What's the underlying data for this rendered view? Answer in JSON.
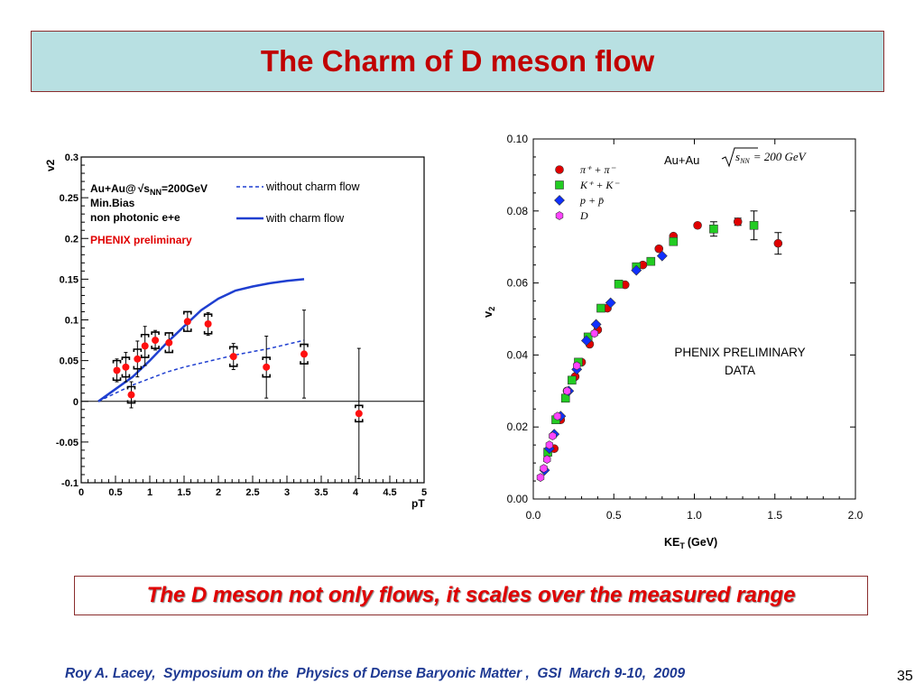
{
  "slide": {
    "title": "The Charm of D meson flow",
    "caption": "The D meson not only flows, it scales over the measured range",
    "footer": "Roy A. Lacey,  Symposium on the  Physics of Dense Baryonic Matter ,  GSI  March 9-10,  2009",
    "page_number": "35"
  },
  "colors": {
    "title_bg": "#b8e0e2",
    "title_text": "#c00000",
    "caption_text": "#e00000",
    "footer_text": "#1f3a93",
    "line_blue": "#1f3fd0"
  },
  "chart_data": [
    {
      "type": "scatter",
      "xlabel": "pT",
      "ylabel": "v2",
      "xlim": [
        0,
        5
      ],
      "ylim": [
        -0.1,
        0.3
      ],
      "xticks": [
        "0",
        "0.5",
        "1",
        "1.5",
        "2",
        "2.5",
        "3",
        "3.5",
        "4",
        "4.5",
        "5"
      ],
      "yticks": [
        "-0.1",
        "-0.05",
        "0",
        "0.05",
        "0.1",
        "0.15",
        "0.2",
        "0.25",
        "0.3"
      ],
      "annotations": {
        "line1": "Au+Au@",
        "line1_b": "s",
        "line1_sub": "NN",
        "line1_c": "=200GeV",
        "line2": "Min.Bias",
        "line3a": "non photonic e",
        "line3b": "+e",
        "line4": "PHENIX preliminary"
      },
      "legend_placement": "top-right",
      "series": [
        {
          "name": "without charm flow",
          "style": "dashed",
          "x": [
            0.25,
            0.5,
            0.75,
            1.0,
            1.25,
            1.5,
            1.75,
            2.0,
            2.25,
            2.5,
            2.75,
            3.0,
            3.25
          ],
          "y": [
            0.0,
            0.01,
            0.02,
            0.028,
            0.036,
            0.042,
            0.047,
            0.052,
            0.057,
            0.061,
            0.065,
            0.07,
            0.075
          ]
        },
        {
          "name": "with charm flow",
          "style": "solid",
          "x": [
            0.25,
            0.5,
            0.75,
            1.0,
            1.25,
            1.5,
            1.75,
            2.0,
            2.25,
            2.5,
            2.75,
            3.0,
            3.25
          ],
          "y": [
            0.0,
            0.015,
            0.03,
            0.05,
            0.072,
            0.092,
            0.112,
            0.126,
            0.136,
            0.141,
            0.145,
            0.148,
            0.15
          ]
        },
        {
          "name": "data",
          "x": [
            0.52,
            0.65,
            0.73,
            0.82,
            0.93,
            1.08,
            1.28,
            1.55,
            1.85,
            2.22,
            2.7,
            3.25,
            4.05
          ],
          "y": [
            0.038,
            0.042,
            0.008,
            0.052,
            0.068,
            0.075,
            0.072,
            0.098,
            0.095,
            0.055,
            0.042,
            0.058,
            -0.015
          ],
          "err": [
            0.014,
            0.018,
            0.016,
            0.022,
            0.024,
            0.012,
            0.012,
            0.012,
            0.014,
            0.016,
            0.038,
            0.054,
            0.08
          ],
          "sys": [
            0.012,
            0.012,
            0.01,
            0.012,
            0.014,
            0.01,
            0.012,
            0.012,
            0.012,
            0.012,
            0.012,
            0.012,
            0.01
          ]
        }
      ]
    },
    {
      "type": "scatter",
      "xlabel": "KE",
      "xlabel_sub": "T",
      "xlabel_unit": "(GeV)",
      "ylabel": "v",
      "ylabel_sub": "2",
      "xlim": [
        0,
        2
      ],
      "ylim": [
        0,
        0.1
      ],
      "xticks": [
        "0.0",
        "0.5",
        "1.0",
        "1.5",
        "2.0"
      ],
      "yticks": [
        "0.00",
        "0.02",
        "0.04",
        "0.06",
        "0.08",
        "0.10"
      ],
      "annotation_system": "Au+Au",
      "annotation_energy_s": "s",
      "annotation_energy_sub": "NN",
      "annotation_energy_val": "= 200 GeV",
      "annotation_prelim_1": "PHENIX PRELIMINARY",
      "annotation_prelim_2": "DATA",
      "legend_placement": "top-left",
      "legend": [
        {
          "label": "π⁺ + π⁻",
          "color": "#e00000",
          "marker": "circle"
        },
        {
          "label": "K⁺ + K⁻",
          "color": "#22cc22",
          "marker": "square"
        },
        {
          "label": "p + p̄",
          "color": "#1030ff",
          "marker": "diamond"
        },
        {
          "label": "D",
          "color": "#ff44ff",
          "marker": "hexagon"
        }
      ],
      "series": [
        {
          "name": "π⁺ + π⁻",
          "color": "#e00000",
          "marker": "circle",
          "x": [
            0.13,
            0.17,
            0.21,
            0.26,
            0.3,
            0.35,
            0.4,
            0.46,
            0.57,
            0.68,
            0.78,
            0.87,
            1.02,
            1.27,
            1.52
          ],
          "y": [
            0.014,
            0.022,
            0.03,
            0.034,
            0.038,
            0.043,
            0.047,
            0.053,
            0.0595,
            0.065,
            0.0695,
            0.073,
            0.076,
            0.077,
            0.071
          ],
          "err": [
            0,
            0,
            0,
            0,
            0,
            0,
            0,
            0,
            0,
            0,
            0,
            0,
            0,
            0.001,
            0.003
          ]
        },
        {
          "name": "K⁺ + K⁻",
          "color": "#22cc22",
          "marker": "square",
          "x": [
            0.09,
            0.14,
            0.2,
            0.24,
            0.28,
            0.34,
            0.42,
            0.53,
            0.64,
            0.73,
            0.87,
            1.12,
            1.37
          ],
          "y": [
            0.013,
            0.022,
            0.028,
            0.033,
            0.038,
            0.045,
            0.053,
            0.0597,
            0.0645,
            0.066,
            0.0715,
            0.075,
            0.076
          ],
          "err": [
            0,
            0,
            0,
            0,
            0,
            0,
            0,
            0,
            0,
            0,
            0,
            0.002,
            0.004
          ]
        },
        {
          "name": "p + p̄",
          "color": "#1030ff",
          "marker": "diamond",
          "x": [
            0.07,
            0.1,
            0.13,
            0.17,
            0.22,
            0.27,
            0.33,
            0.39,
            0.48,
            0.64,
            0.8
          ],
          "y": [
            0.008,
            0.014,
            0.018,
            0.023,
            0.03,
            0.036,
            0.044,
            0.0485,
            0.0545,
            0.0635,
            0.0675
          ],
          "err": [
            0,
            0,
            0,
            0,
            0,
            0,
            0,
            0,
            0,
            0,
            0
          ]
        },
        {
          "name": "D",
          "color": "#ff44ff",
          "marker": "hexagon",
          "x": [
            0.045,
            0.065,
            0.085,
            0.1,
            0.12,
            0.15,
            0.21,
            0.27,
            0.38
          ],
          "y": [
            0.006,
            0.0085,
            0.011,
            0.015,
            0.0175,
            0.023,
            0.03,
            0.037,
            0.046
          ],
          "err": [
            0,
            0,
            0,
            0,
            0,
            0,
            0,
            0,
            0
          ]
        }
      ]
    }
  ]
}
